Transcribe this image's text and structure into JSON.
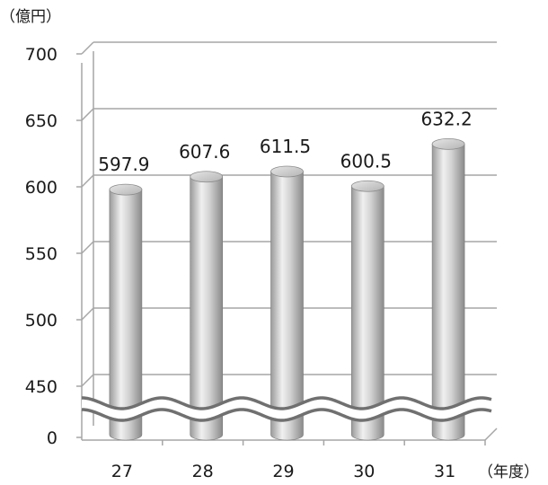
{
  "chart_data": {
    "type": "bar",
    "bar_shape": "cylinder",
    "categories": [
      "27",
      "28",
      "29",
      "30",
      "31"
    ],
    "values": [
      597.9,
      607.6,
      611.5,
      600.5,
      632.2
    ],
    "data_labels": [
      "597.9",
      "607.6",
      "611.5",
      "600.5",
      "632.2"
    ],
    "xlabel": "（年度）",
    "ylabel": "（億円）",
    "yticks": [
      0,
      450,
      500,
      550,
      600,
      650,
      700
    ],
    "ytick_labels": [
      "0",
      "450",
      "500",
      "550",
      "600",
      "650",
      "700"
    ],
    "ylim": [
      0,
      700
    ],
    "axis_break": "wavy break between 0 and 450",
    "grid": true,
    "colors": {
      "bar_light": "#f2f2f2",
      "bar_mid": "#c8c8c8",
      "bar_dark": "#8c8c8c",
      "grid": "#a6a6a6",
      "break_line": "#707070"
    }
  }
}
